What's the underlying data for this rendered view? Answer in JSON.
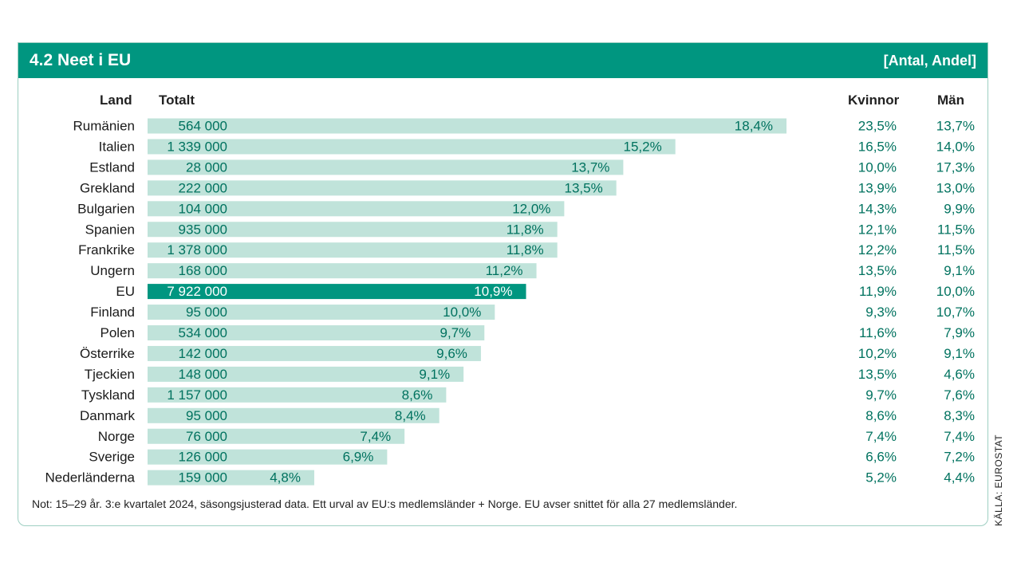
{
  "header": {
    "title": "4.2  Neet i EU",
    "unit": "[Antal, Andel]"
  },
  "columns": {
    "land": "Land",
    "totalt": "Totalt",
    "kvinnor": "Kvinnor",
    "man": "Män"
  },
  "colors": {
    "accent": "#009680",
    "bar": "#c0e3da",
    "bar_highlight": "#009680",
    "value_text": "#00725f"
  },
  "chart_data": {
    "type": "bar",
    "orientation": "horizontal",
    "highlight": "EU",
    "categories": [
      "Rumänien",
      "Italien",
      "Estland",
      "Grekland",
      "Bulgarien",
      "Spanien",
      "Frankrike",
      "Ungern",
      "EU",
      "Finland",
      "Polen",
      "Österrike",
      "Tjeckien",
      "Tyskland",
      "Danmark",
      "Norge",
      "Sverige",
      "Nederländerna"
    ],
    "values": [
      18.4,
      15.2,
      13.7,
      13.5,
      12.0,
      11.8,
      11.8,
      11.2,
      10.9,
      10.0,
      9.7,
      9.6,
      9.1,
      8.6,
      8.4,
      7.4,
      6.9,
      4.8
    ],
    "value_labels": [
      "18,4%",
      "15,2%",
      "13,7%",
      "13,5%",
      "12,0%",
      "11,8%",
      "11,8%",
      "11,2%",
      "10,9%",
      "10,0%",
      "9,7%",
      "9,6%",
      "9,1%",
      "8,6%",
      "8,4%",
      "7,4%",
      "6,9%",
      "4,8%"
    ],
    "counts": [
      "564 000",
      "1 339 000",
      "28 000",
      "222 000",
      "104 000",
      "935 000",
      "1 378 000",
      "168 000",
      "7 922 000",
      "95 000",
      "534 000",
      "142 000",
      "148 000",
      "1 157 000",
      "95 000",
      "76 000",
      "126 000",
      "159 000"
    ],
    "kvinnor": [
      "23,5%",
      "16,5%",
      "10,0%",
      "13,9%",
      "14,3%",
      "12,1%",
      "12,2%",
      "13,5%",
      "11,9%",
      "9,3%",
      "11,6%",
      "10,2%",
      "13,5%",
      "9,7%",
      "8,6%",
      "7,4%",
      "6,6%",
      "5,2%"
    ],
    "man": [
      "13,7%",
      "14,0%",
      "17,3%",
      "13,0%",
      "9,9%",
      "11,5%",
      "11,5%",
      "9,1%",
      "10,0%",
      "10,7%",
      "7,9%",
      "9,1%",
      "4,6%",
      "7,6%",
      "8,3%",
      "7,4%",
      "7,2%",
      "4,4%"
    ],
    "xlim": [
      0,
      18.4
    ],
    "grid": false,
    "legend": "none"
  },
  "note": "Not: 15–29 år. 3:e kvartalet 2024, säsongsjusterad data. Ett urval av EU:s medlemsländer + Norge. EU avser snittet för alla 27 medlemsländer.",
  "source": "KÄLLA: EUROSTAT"
}
